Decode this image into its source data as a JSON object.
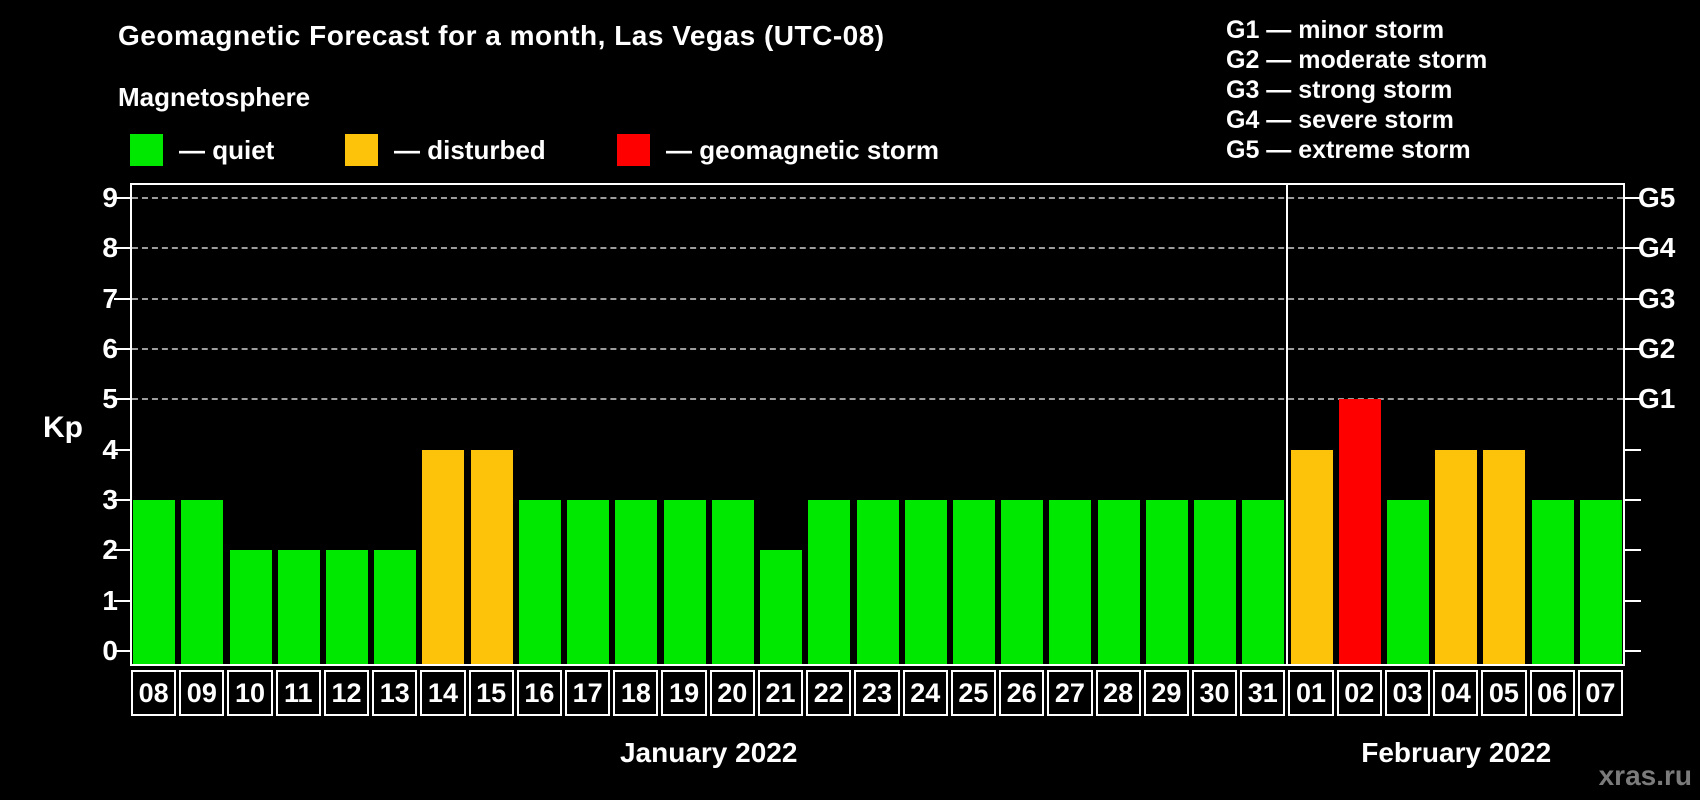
{
  "header": {
    "title": "Geomagnetic Forecast for a month, Las Vegas (UTC-08)",
    "subtitle": "Magnetosphere"
  },
  "legend": {
    "separator": "—",
    "items": [
      {
        "label": "quiet",
        "color": "#00e700",
        "status": "quiet"
      },
      {
        "label": "disturbed",
        "color": "#fdc30a",
        "status": "disturbed"
      },
      {
        "label": "geomagnetic storm",
        "color": "#ff0000",
        "status": "storm"
      }
    ]
  },
  "g_scale_legend": [
    {
      "code": "G1",
      "label": "minor storm"
    },
    {
      "code": "G2",
      "label": "moderate storm"
    },
    {
      "code": "G3",
      "label": "strong storm"
    },
    {
      "code": "G4",
      "label": "severe storm"
    },
    {
      "code": "G5",
      "label": "extreme storm"
    }
  ],
  "chart_data": {
    "type": "bar",
    "title": "Geomagnetic Forecast for a month, Las Vegas (UTC-08)",
    "xlabel": "",
    "ylabel": "Kp",
    "ylim": [
      0,
      9
    ],
    "yticks": [
      0,
      1,
      2,
      3,
      4,
      5,
      6,
      7,
      8,
      9
    ],
    "gridlines_at": [
      5,
      6,
      7,
      8,
      9
    ],
    "grid": "dashed, horizontal only at Kp 5-9",
    "legend_position": "top",
    "right_axis": [
      {
        "value": 5,
        "label": "G1"
      },
      {
        "value": 6,
        "label": "G2"
      },
      {
        "value": 7,
        "label": "G3"
      },
      {
        "value": 8,
        "label": "G4"
      },
      {
        "value": 9,
        "label": "G5"
      }
    ],
    "months": [
      {
        "label": "January 2022",
        "days": 24
      },
      {
        "label": "February 2022",
        "days": 7
      }
    ],
    "categories": [
      "08",
      "09",
      "10",
      "11",
      "12",
      "13",
      "14",
      "15",
      "16",
      "17",
      "18",
      "19",
      "20",
      "21",
      "22",
      "23",
      "24",
      "25",
      "26",
      "27",
      "28",
      "29",
      "30",
      "31",
      "01",
      "02",
      "03",
      "04",
      "05",
      "06",
      "07"
    ],
    "values": [
      3,
      3,
      2,
      2,
      2,
      2,
      4,
      4,
      3,
      3,
      3,
      3,
      3,
      2,
      3,
      3,
      3,
      3,
      3,
      3,
      3,
      3,
      3,
      3,
      4,
      5,
      3,
      4,
      4,
      3,
      3
    ],
    "statuses": [
      "quiet",
      "quiet",
      "quiet",
      "quiet",
      "quiet",
      "quiet",
      "disturbed",
      "disturbed",
      "quiet",
      "quiet",
      "quiet",
      "quiet",
      "quiet",
      "quiet",
      "quiet",
      "quiet",
      "quiet",
      "quiet",
      "quiet",
      "quiet",
      "quiet",
      "quiet",
      "quiet",
      "quiet",
      "disturbed",
      "storm",
      "quiet",
      "disturbed",
      "disturbed",
      "quiet",
      "quiet"
    ],
    "status_colors": {
      "quiet": "#00e700",
      "disturbed": "#fdc30a",
      "storm": "#ff0000"
    }
  },
  "watermark": "xras.ru"
}
